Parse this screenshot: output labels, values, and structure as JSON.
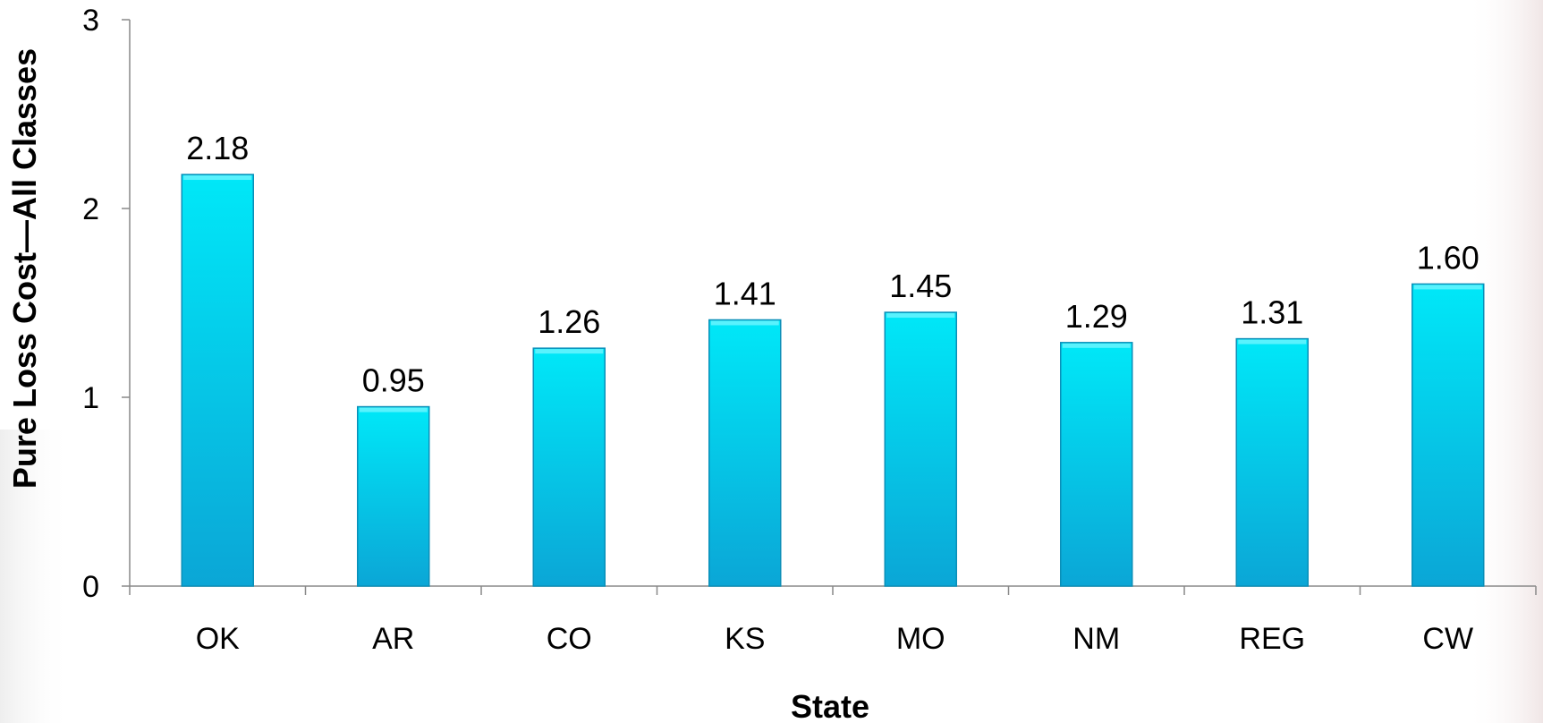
{
  "chart_data": {
    "type": "bar",
    "title": "",
    "xlabel": "State",
    "ylabel": "Pure Loss Cost—All Classes",
    "categories": [
      "OK",
      "AR",
      "CO",
      "KS",
      "MO",
      "NM",
      "REG",
      "CW"
    ],
    "values": [
      2.18,
      0.95,
      1.26,
      1.41,
      1.45,
      1.29,
      1.31,
      1.6
    ],
    "value_labels": [
      "2.18",
      "0.95",
      "1.26",
      "1.41",
      "1.45",
      "1.29",
      "1.31",
      "1.60"
    ],
    "ylim": [
      0,
      3
    ],
    "yticks": [
      0,
      1,
      2,
      3
    ],
    "ytick_labels": [
      "0",
      "1",
      "2",
      "3"
    ],
    "grid": false,
    "legend": "none",
    "colors": {
      "bar_top": "#00e8f8",
      "bar_bottom": "#0ba6d6",
      "bar_edge": "#0a8fb8",
      "axis": "#888888"
    }
  }
}
